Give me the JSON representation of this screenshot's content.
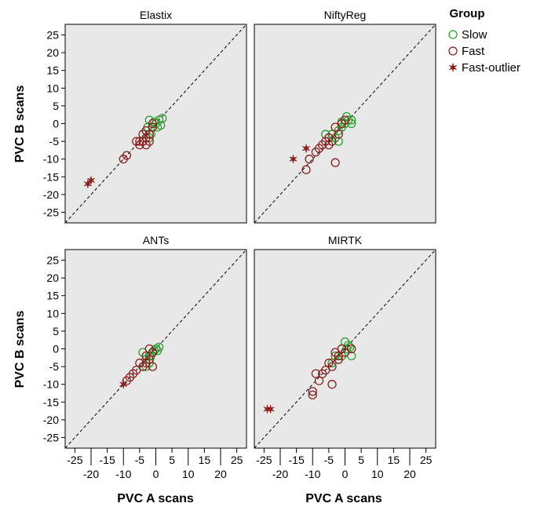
{
  "chart_data": {
    "type": "scatter",
    "xlabel": "PVC A scans",
    "ylabel": "PVC B scans",
    "xlim": [
      -28,
      28
    ],
    "ylim": [
      -28,
      28
    ],
    "y_ticks": [
      25,
      20,
      15,
      10,
      5,
      0,
      -5,
      -10,
      -15,
      -20,
      -25
    ],
    "x_ticks_upper": [
      -25,
      -15,
      -5,
      5,
      15,
      25
    ],
    "x_ticks_lower": [
      -20,
      -10,
      0,
      10,
      20
    ],
    "grid": false,
    "identity_line": true,
    "legend": {
      "title": "Group",
      "placement": "right",
      "entries": [
        {
          "label": "Slow",
          "marker": "circle",
          "color": "#2e9e2e"
        },
        {
          "label": "Fast",
          "marker": "circle",
          "color": "#8b2020"
        },
        {
          "label": "Fast-outlier",
          "marker": "star",
          "color": "#8b2020"
        }
      ]
    },
    "panels": [
      {
        "title": "Elastix",
        "series": [
          {
            "group": "Slow",
            "points": [
              [
                -2,
                1
              ],
              [
                -1,
                -1
              ],
              [
                0,
                0
              ],
              [
                1,
                1
              ],
              [
                2,
                1.5
              ],
              [
                -3,
                -2
              ],
              [
                -1.5,
                -3
              ],
              [
                0.5,
                -1
              ],
              [
                -2.5,
                -1
              ],
              [
                1.5,
                -0.5
              ],
              [
                -0.5,
                0.5
              ],
              [
                -2,
                -4
              ]
            ]
          },
          {
            "group": "Fast",
            "points": [
              [
                -4,
                -5
              ],
              [
                -3,
                -6
              ],
              [
                -5,
                -5
              ],
              [
                -2,
                -3
              ],
              [
                -1,
                0
              ],
              [
                -3,
                -4
              ],
              [
                -4,
                -3
              ],
              [
                -6,
                -5
              ],
              [
                -2,
                -5
              ],
              [
                -5,
                -6
              ],
              [
                -10,
                -10
              ],
              [
                -9,
                -9
              ],
              [
                -3,
                -2
              ],
              [
                -1,
                -1
              ]
            ]
          },
          {
            "group": "Fast-outlier",
            "points": [
              [
                -20,
                -16
              ],
              [
                -21,
                -17
              ]
            ]
          }
        ]
      },
      {
        "title": "NiftyReg",
        "series": [
          {
            "group": "Slow",
            "points": [
              [
                -6,
                -3
              ],
              [
                -2,
                -2
              ],
              [
                0,
                0
              ],
              [
                1,
                1
              ],
              [
                2,
                1
              ],
              [
                -1,
                -1
              ],
              [
                -3,
                -4
              ],
              [
                0.5,
                2
              ],
              [
                2,
                0
              ],
              [
                -4,
                -3
              ],
              [
                -1,
                0.5
              ],
              [
                -2,
                -5
              ]
            ]
          },
          {
            "group": "Fast",
            "points": [
              [
                -3,
                -1
              ],
              [
                -4,
                -5
              ],
              [
                -5,
                -4
              ],
              [
                -7,
                -6
              ],
              [
                -6,
                -5
              ],
              [
                -8,
                -7
              ],
              [
                -9,
                -8
              ],
              [
                -11,
                -10
              ],
              [
                -12,
                -13
              ],
              [
                -3,
                -11
              ],
              [
                -2,
                -3
              ],
              [
                -1,
                0
              ],
              [
                -5,
                -6
              ],
              [
                0,
                1
              ]
            ]
          },
          {
            "group": "Fast-outlier",
            "points": [
              [
                -16,
                -10
              ],
              [
                -12,
                -7
              ]
            ]
          }
        ]
      },
      {
        "title": "ANTs",
        "series": [
          {
            "group": "Slow",
            "points": [
              [
                -4,
                -1
              ],
              [
                -2,
                -2
              ],
              [
                0,
                0
              ],
              [
                1,
                0.5
              ],
              [
                -1,
                -1
              ],
              [
                -3,
                -3
              ],
              [
                -0.5,
                -0.5
              ],
              [
                -2,
                -4
              ],
              [
                -3,
                -5
              ],
              [
                0.5,
                -0.5
              ],
              [
                -1.5,
                -2
              ]
            ]
          },
          {
            "group": "Fast",
            "points": [
              [
                -2,
                -3
              ],
              [
                -4,
                -5
              ],
              [
                -5,
                -4
              ],
              [
                -3,
                -4
              ],
              [
                -6,
                -6
              ],
              [
                -7,
                -7
              ],
              [
                -8,
                -8
              ],
              [
                -9,
                -9
              ],
              [
                -1,
                -5
              ],
              [
                -2,
                0
              ],
              [
                -3,
                -2
              ],
              [
                -1,
                -1
              ]
            ]
          },
          {
            "group": "Fast-outlier",
            "points": [
              [
                -10,
                -10
              ]
            ]
          }
        ]
      },
      {
        "title": "MIRTK",
        "series": [
          {
            "group": "Slow",
            "points": [
              [
                0,
                2
              ],
              [
                1,
                1
              ],
              [
                2,
                -2
              ],
              [
                -1,
                0
              ],
              [
                0,
                -1
              ],
              [
                -3,
                -2
              ],
              [
                -4,
                -4
              ],
              [
                -2,
                -3
              ],
              [
                0.5,
                0
              ],
              [
                -1,
                -2
              ],
              [
                1.5,
                0.5
              ]
            ]
          },
          {
            "group": "Fast",
            "points": [
              [
                -3,
                -1
              ],
              [
                -4,
                -5
              ],
              [
                -5,
                -4
              ],
              [
                -6,
                -6
              ],
              [
                -7,
                -7
              ],
              [
                -8,
                -9
              ],
              [
                -9,
                -7
              ],
              [
                -10,
                -12
              ],
              [
                -10,
                -13
              ],
              [
                -4,
                -10
              ],
              [
                -2,
                -3
              ],
              [
                -1,
                0
              ],
              [
                2,
                0
              ],
              [
                -2,
                -2
              ],
              [
                0,
                -1
              ]
            ]
          },
          {
            "group": "Fast-outlier",
            "points": [
              [
                -24,
                -17
              ],
              [
                -23,
                -17
              ]
            ]
          }
        ]
      }
    ]
  }
}
